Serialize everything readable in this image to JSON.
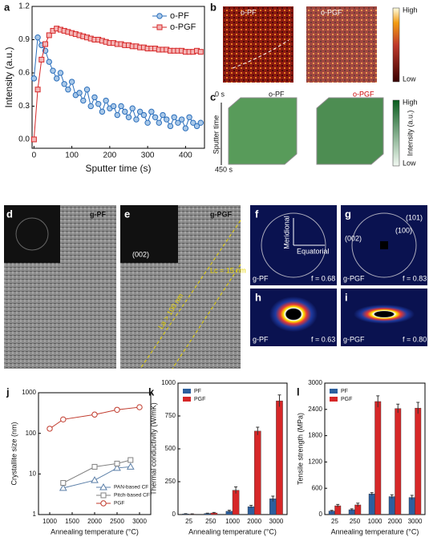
{
  "chart_data": [
    {
      "panel": "a",
      "type": "line",
      "xlabel": "Sputter time (s)",
      "ylabel": "Intensity (a.u.)",
      "xlim": [
        -5,
        450
      ],
      "xticks": [
        0,
        100,
        200,
        300,
        400
      ],
      "ylim": [
        -0.08,
        1.2
      ],
      "yticks": [
        {
          "value": 0,
          "label": "0.0"
        },
        0.3,
        0.6,
        0.9,
        {
          "value": 1.2,
          "label": "1.2"
        }
      ],
      "legend": "upper right",
      "x": [
        0,
        10,
        20,
        30,
        40,
        50,
        60,
        70,
        80,
        90,
        100,
        110,
        120,
        130,
        140,
        150,
        160,
        170,
        180,
        190,
        200,
        210,
        220,
        230,
        240,
        250,
        260,
        270,
        280,
        290,
        300,
        310,
        320,
        330,
        340,
        350,
        360,
        370,
        380,
        390,
        400,
        410,
        420,
        430,
        440
      ],
      "series": [
        {
          "name": "o-PF",
          "color": "#2a6ebb",
          "marker": "circle",
          "marker_fill": "#a9c8e8",
          "values": [
            0.55,
            0.92,
            0.85,
            0.8,
            0.7,
            0.62,
            0.55,
            0.6,
            0.5,
            0.45,
            0.52,
            0.4,
            0.42,
            0.35,
            0.45,
            0.3,
            0.38,
            0.32,
            0.25,
            0.35,
            0.28,
            0.3,
            0.22,
            0.3,
            0.25,
            0.2,
            0.28,
            0.18,
            0.25,
            0.22,
            0.15,
            0.25,
            0.2,
            0.15,
            0.22,
            0.18,
            0.12,
            0.2,
            0.15,
            0.18,
            0.1,
            0.2,
            0.15,
            0.12,
            0.15
          ]
        },
        {
          "name": "o-PGF",
          "color": "#d62728",
          "marker": "square",
          "marker_fill": "#f4b6b6",
          "values": [
            0,
            0.45,
            0.72,
            0.86,
            0.94,
            0.98,
            1.0,
            0.99,
            0.98,
            0.97,
            0.96,
            0.95,
            0.94,
            0.93,
            0.92,
            0.91,
            0.9,
            0.9,
            0.89,
            0.88,
            0.87,
            0.87,
            0.86,
            0.86,
            0.85,
            0.85,
            0.84,
            0.84,
            0.83,
            0.83,
            0.82,
            0.82,
            0.82,
            0.81,
            0.81,
            0.81,
            0.8,
            0.8,
            0.8,
            0.8,
            0.79,
            0.79,
            0.79,
            0.8,
            0.79
          ]
        }
      ]
    },
    {
      "panel": "j",
      "type": "line",
      "xlabel": "Annealing temperature (°C)",
      "ylabel": "Crystallite size (nm)",
      "log_y": true,
      "xlim": [
        750,
        3250
      ],
      "xticks": [
        1000,
        1500,
        2000,
        2500,
        3000
      ],
      "ylim": [
        1,
        1000
      ],
      "yticks": [
        1,
        10,
        100,
        1000
      ],
      "legend": "lower right",
      "series": [
        {
          "name": "PAN-based CF",
          "color": "#5b7fa8",
          "marker": "triangle",
          "marker_fill": "#ffffff",
          "x": [
            1300,
            2000,
            2500,
            2800
          ],
          "values": [
            4.5,
            7,
            14,
            15
          ]
        },
        {
          "name": "Pitch-based CF",
          "color": "#808080",
          "marker": "square",
          "marker_fill": "#ffffff",
          "x": [
            1300,
            2000,
            2500,
            2800
          ],
          "values": [
            6,
            15,
            18,
            22
          ]
        },
        {
          "name": "PGF",
          "color": "#c0392b",
          "marker": "circle",
          "marker_fill": "#ffffff",
          "x": [
            1000,
            1300,
            2000,
            2500,
            3000
          ],
          "values": [
            130,
            220,
            290,
            380,
            440
          ]
        }
      ]
    },
    {
      "panel": "k",
      "type": "bar",
      "xlabel": "Annealing temperature (°C)",
      "ylabel": "Thermal conductivity (W/mK)",
      "categories": [
        "25",
        "250",
        "1000",
        "2000",
        "3000"
      ],
      "ylim": [
        0,
        1000
      ],
      "yticks": [
        0,
        250,
        500,
        750,
        1000
      ],
      "legend": "upper left",
      "series": [
        {
          "name": "PF",
          "color": "#2c5f9e",
          "values": [
            5,
            8,
            25,
            60,
            120
          ],
          "errors": [
            2,
            3,
            8,
            10,
            20
          ]
        },
        {
          "name": "PGF",
          "color": "#d62728",
          "values": [
            3,
            12,
            185,
            635,
            865
          ],
          "errors": [
            2,
            4,
            25,
            30,
            45
          ]
        }
      ]
    },
    {
      "panel": "l",
      "type": "bar",
      "xlabel": "Annealing temperature (°C)",
      "ylabel": "Tensile strength (MPa)",
      "categories": [
        "25",
        "250",
        "1000",
        "2000",
        "3000"
      ],
      "ylim": [
        0,
        3000
      ],
      "yticks": [
        0,
        600,
        1200,
        1800,
        2400,
        3000
      ],
      "legend": "upper left",
      "series": [
        {
          "name": "PF",
          "color": "#2c5f9e",
          "values": [
            80,
            110,
            470,
            410,
            390
          ],
          "errors": [
            15,
            20,
            30,
            40,
            50
          ]
        },
        {
          "name": "PGF",
          "color": "#d62728",
          "values": [
            200,
            220,
            2580,
            2420,
            2430
          ],
          "errors": [
            30,
            40,
            130,
            100,
            130
          ]
        }
      ]
    }
  ],
  "panels": {
    "b": {
      "letter": "b",
      "left": "o-PF",
      "right": "o-PGF",
      "high": "High",
      "low": "Low"
    },
    "c": {
      "letter": "c",
      "start": "0 s",
      "axis": "Sputter time",
      "end": "450 s",
      "left": "o-PF",
      "right": "o-PGF",
      "high": "High",
      "bar": "Intensity (a.u.)",
      "low": "Low"
    },
    "d": {
      "letter": "d",
      "label": "g-PF"
    },
    "e": {
      "letter": "e",
      "label": "g-PGF",
      "peak": "(002)",
      "lc": "Lc = 15 nm",
      "la": "La > 100 nm"
    },
    "f": {
      "letter": "f",
      "meridional": "Meridional",
      "equatorial": "Equatorial",
      "label": "g-PF",
      "f": "f = 0.68"
    },
    "g": {
      "letter": "g",
      "p101": "(101)",
      "p100": "(100)",
      "p002": "(002)",
      "label": "g-PGF",
      "f": "f = 0.83"
    },
    "h": {
      "letter": "h",
      "label": "g-PF",
      "f": "f = 0.63"
    },
    "i": {
      "letter": "i",
      "label": "g-PGF",
      "f": "f = 0.80"
    }
  }
}
